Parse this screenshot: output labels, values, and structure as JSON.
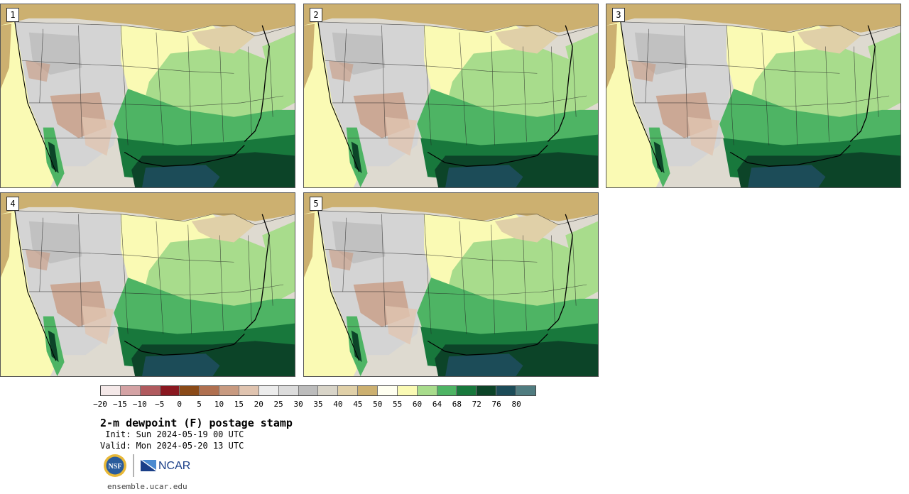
{
  "panels": [
    {
      "label": "1"
    },
    {
      "label": "2"
    },
    {
      "label": "3"
    },
    {
      "label": "4"
    },
    {
      "label": "5"
    }
  ],
  "colorbar": {
    "colors": [
      "#f4e8e8",
      "#d4a2a4",
      "#b05a5e",
      "#8a1820",
      "#8a4a18",
      "#b07050",
      "#c89a80",
      "#e0c4b0",
      "#ececec",
      "#dcdcdc",
      "#bcbcbc",
      "#d8d4c8",
      "#e0d0a8",
      "#ccb070",
      "#fffff0",
      "#fafab4",
      "#a8dc8c",
      "#4eb464",
      "#18783c",
      "#0c4428",
      "#1c4c58",
      "#507c80"
    ],
    "tick_labels": [
      "−20",
      "−15",
      "−10",
      "−5",
      "0",
      "5",
      "10",
      "15",
      "20",
      "25",
      "30",
      "35",
      "40",
      "45",
      "50",
      "55",
      "60",
      "64",
      "68",
      "72",
      "76",
      "80"
    ]
  },
  "info": {
    "title": "2-m dewpoint (F) postage stamp",
    "init": " Init: Sun 2024-05-19 00 UTC",
    "valid": "Valid: Mon 2024-05-20 13 UTC",
    "url": "ensemble.ucar.edu"
  },
  "logos": {
    "nsf": "NSF",
    "ncar": "NCAR"
  }
}
